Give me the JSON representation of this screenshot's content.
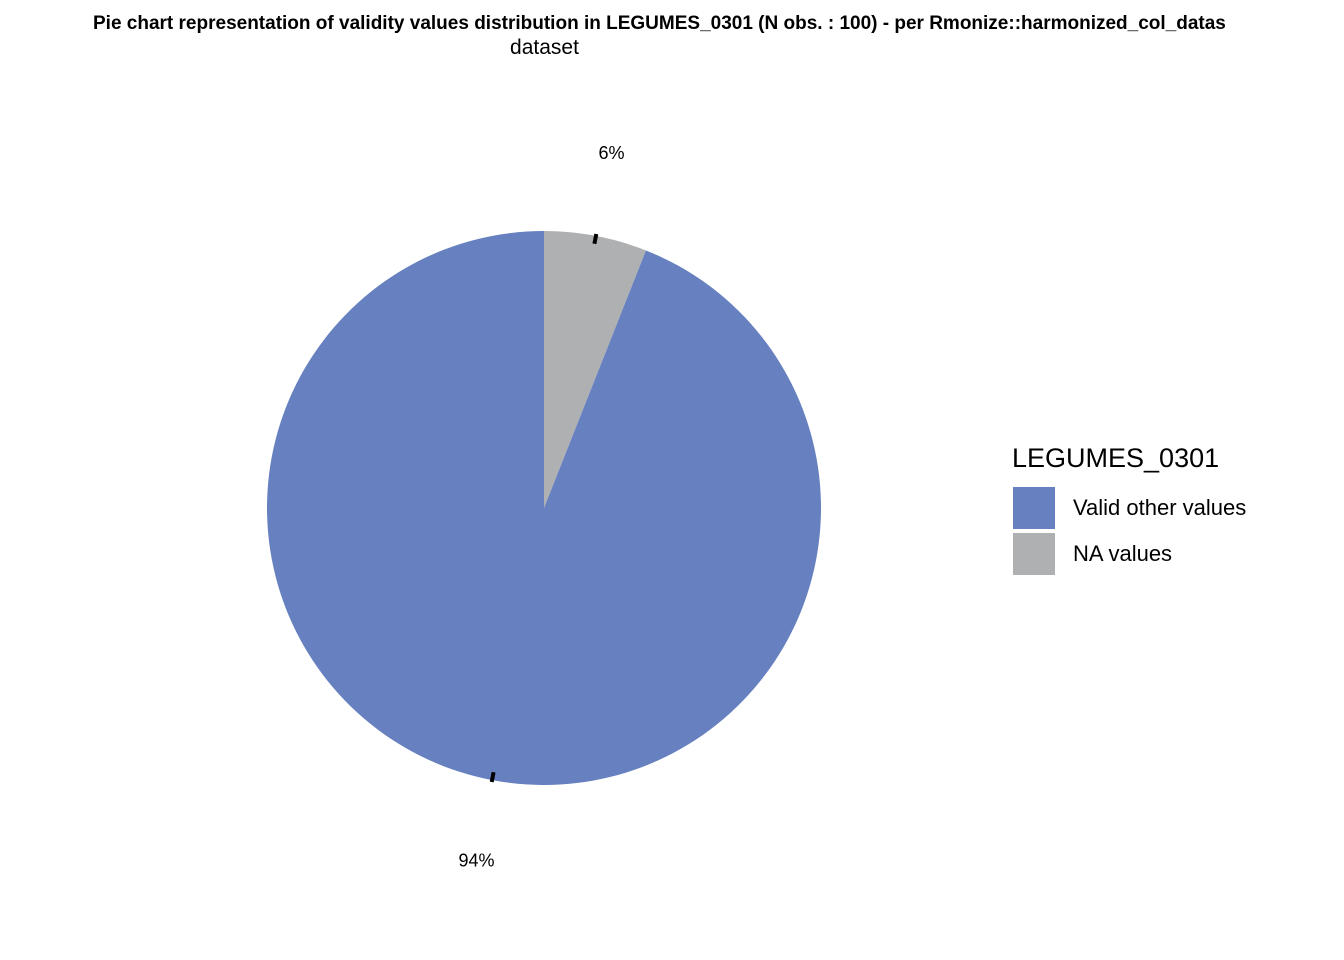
{
  "chart_data": {
    "type": "pie",
    "title_line_1": "Pie chart representation of validity values distribution in LEGUMES_0301 (N obs. : 100) - per Rmonize::harmonized_col_datas",
    "title_line_2": "dataset",
    "legend_title": "LEGUMES_0301",
    "legend_placement": "right",
    "start_angle": "12 o'clock",
    "direction": "clockwise",
    "slices": [
      {
        "category": "NA values",
        "value": 6,
        "label": "6%",
        "color": "#AFB0B2"
      },
      {
        "category": "Valid other values",
        "value": 94,
        "label": "94%",
        "color": "#6680C0"
      }
    ],
    "legend_order": [
      "Valid other values",
      "NA values"
    ],
    "tick_color": "#000000"
  }
}
